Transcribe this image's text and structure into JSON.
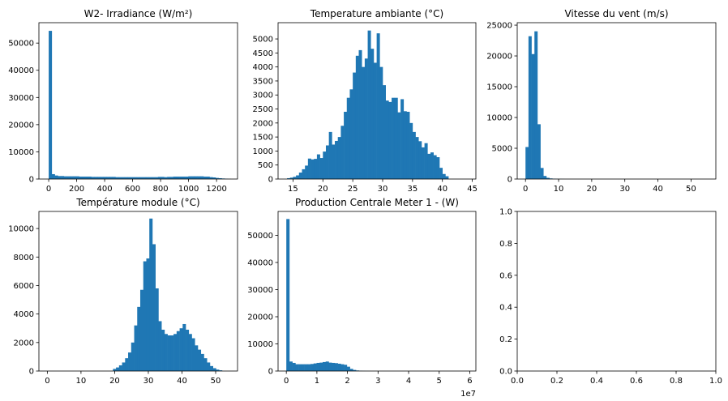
{
  "chart_data": [
    {
      "type": "bar",
      "title": "W2- Irradiance (W/m²)",
      "xlim": [
        -70,
        1350
      ],
      "ylim": [
        0,
        57500
      ],
      "xticks": [
        0,
        200,
        400,
        600,
        800,
        1000,
        1200
      ],
      "yticks": [
        0,
        10000,
        20000,
        30000,
        40000,
        50000
      ],
      "bin_start": 0,
      "bin_width": 21.7,
      "values": [
        54500,
        1800,
        1300,
        1100,
        1100,
        1000,
        1000,
        1000,
        1000,
        1000,
        900,
        900,
        900,
        900,
        800,
        800,
        800,
        800,
        800,
        800,
        800,
        800,
        700,
        700,
        700,
        700,
        700,
        700,
        700,
        700,
        700,
        700,
        700,
        700,
        700,
        700,
        800,
        800,
        700,
        800,
        800,
        900,
        900,
        900,
        900,
        900,
        1000,
        1000,
        1000,
        1000,
        1000,
        900,
        900,
        700,
        600,
        400,
        300,
        200,
        100,
        50
      ]
    },
    {
      "type": "bar",
      "title": "Temperature ambiante (°C)",
      "xlim": [
        12.5,
        45.6
      ],
      "ylim": [
        0,
        5580
      ],
      "xticks": [
        15,
        20,
        25,
        30,
        35,
        40,
        45
      ],
      "yticks": [
        0,
        500,
        1000,
        1500,
        2000,
        2500,
        3000,
        3500,
        4000,
        4500,
        5000
      ],
      "bin_start": 14.0,
      "bin_width": 0.5,
      "values": [
        30,
        50,
        80,
        130,
        230,
        350,
        480,
        730,
        700,
        720,
        880,
        750,
        980,
        1200,
        1680,
        1230,
        1360,
        1500,
        1900,
        2400,
        2900,
        3200,
        3800,
        4400,
        4600,
        4000,
        4300,
        5300,
        4650,
        4150,
        5200,
        4000,
        3350,
        2800,
        2750,
        2900,
        2900,
        2380,
        2850,
        2420,
        2400,
        2000,
        1680,
        1500,
        1350,
        1130,
        1280,
        900,
        950,
        850,
        780,
        400,
        180,
        100
      ]
    },
    {
      "type": "bar",
      "title": "Vitesse du vent (m/s)",
      "xlim": [
        -2.5,
        57.5
      ],
      "ylim": [
        0,
        25400
      ],
      "xticks": [
        0,
        10,
        20,
        30,
        40,
        50
      ],
      "yticks": [
        0,
        5000,
        10000,
        15000,
        20000,
        25000
      ],
      "bin_start": 0,
      "bin_width": 0.9,
      "values": [
        5200,
        23200,
        20300,
        24000,
        8900,
        1800,
        500,
        200,
        100,
        50,
        30,
        20,
        10
      ]
    },
    {
      "type": "bar",
      "title": "Température module (°C)",
      "xlim": [
        -2.5,
        56.5
      ],
      "ylim": [
        0,
        11200
      ],
      "xticks": [
        0,
        10,
        20,
        30,
        40,
        50
      ],
      "yticks": [
        0,
        2000,
        4000,
        6000,
        8000,
        10000
      ],
      "bin_start": 19.5,
      "bin_width": 0.9,
      "values": [
        150,
        250,
        400,
        600,
        900,
        1300,
        2000,
        3200,
        4500,
        5700,
        7700,
        7900,
        10700,
        8900,
        5800,
        3500,
        2900,
        2600,
        2500,
        2500,
        2600,
        2800,
        3000,
        3300,
        2900,
        2600,
        2300,
        1800,
        1500,
        1200,
        900,
        600,
        350,
        200,
        100,
        50
      ]
    },
    {
      "type": "bar",
      "title": "Production Centrale Meter 1 - (W)",
      "xlim": [
        -0.27,
        6.2
      ],
      "ylim": [
        0,
        58800
      ],
      "xticks": [
        0,
        1,
        2,
        3,
        4,
        5,
        6
      ],
      "yticks": [
        0,
        10000,
        20000,
        30000,
        40000,
        50000
      ],
      "axis_offset_label": "1e7",
      "bin_start": 0,
      "bin_width": 0.099,
      "values": [
        56000,
        3500,
        3000,
        2500,
        2500,
        2500,
        2500,
        2500,
        2600,
        2800,
        3000,
        3100,
        3300,
        3500,
        3100,
        3000,
        2900,
        2700,
        2500,
        2300,
        1600,
        800,
        400,
        200,
        100,
        50,
        30,
        20
      ]
    },
    {
      "type": "bar",
      "title": "",
      "xlim": [
        0,
        1
      ],
      "ylim": [
        0,
        1
      ],
      "xticks": [
        0.0,
        0.2,
        0.4,
        0.6,
        0.8,
        1.0
      ],
      "yticks": [
        0.0,
        0.2,
        0.4,
        0.6,
        0.8,
        1.0
      ],
      "tick_format": "fixed1",
      "values": []
    }
  ],
  "colors": {
    "bar": "#1f77b4",
    "axis": "#000000",
    "background": "#ffffff"
  }
}
